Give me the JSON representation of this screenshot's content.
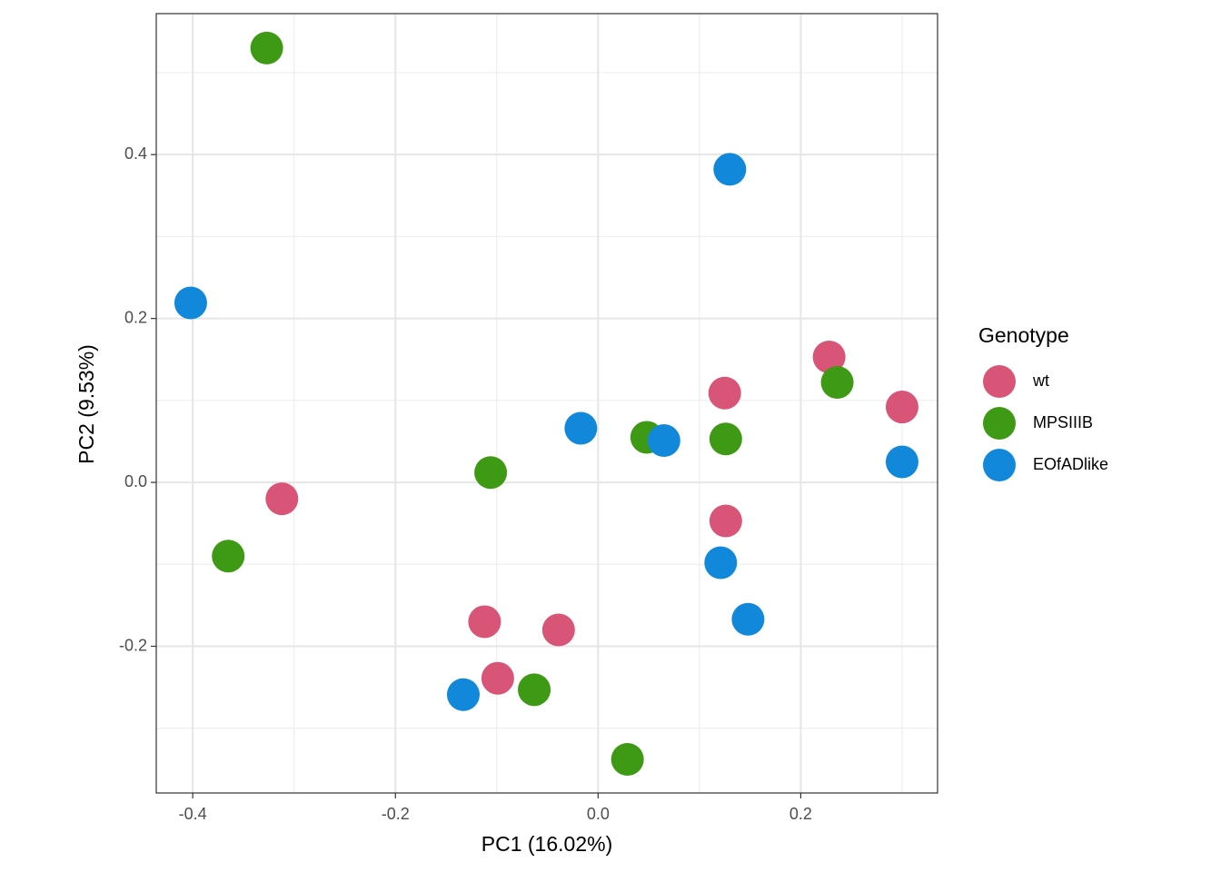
{
  "chart_data": {
    "type": "scatter",
    "xlabel": "PC1 (16.02%)",
    "ylabel": "PC2 (9.53%)",
    "legend_title": "Genotype",
    "legend": "right",
    "xlim": [
      -0.436,
      0.335
    ],
    "ylim": [
      -0.379,
      0.572
    ],
    "xticks": [
      -0.4,
      -0.2,
      {
        "value": 0,
        "label": "0.0"
      },
      0.2
    ],
    "yticks": [
      -0.2,
      {
        "value": 0,
        "label": "0.0"
      },
      0.2,
      0.4
    ],
    "xminor": [
      -0.3,
      -0.1,
      0.1,
      0.3
    ],
    "yminor": [
      -0.3,
      -0.1,
      0.1,
      0.3,
      0.5
    ],
    "grid": true,
    "series": [
      {
        "name": "wt",
        "color": "#d95577",
        "x": [
          0.228,
          0.125,
          0.3,
          -0.312,
          0.126,
          -0.112,
          -0.039,
          -0.099
        ],
        "values": [
          0.153,
          0.109,
          0.092,
          -0.02,
          -0.047,
          -0.17,
          -0.18,
          -0.239
        ]
      },
      {
        "name": "MPSIIIB",
        "color": "#3e9a14",
        "x": [
          -0.327,
          0.236,
          0.048,
          0.126,
          -0.106,
          -0.365,
          -0.063,
          0.029
        ],
        "values": [
          0.53,
          0.122,
          0.055,
          0.053,
          0.012,
          -0.09,
          -0.253,
          -0.338
        ]
      },
      {
        "name": "EOfADlike",
        "color": "#1188da",
        "x": [
          0.13,
          -0.402,
          -0.017,
          0.065,
          0.3,
          0.121,
          0.148,
          -0.133
        ],
        "values": [
          0.382,
          0.219,
          0.066,
          0.051,
          0.025,
          -0.098,
          -0.167,
          -0.259
        ]
      }
    ]
  }
}
